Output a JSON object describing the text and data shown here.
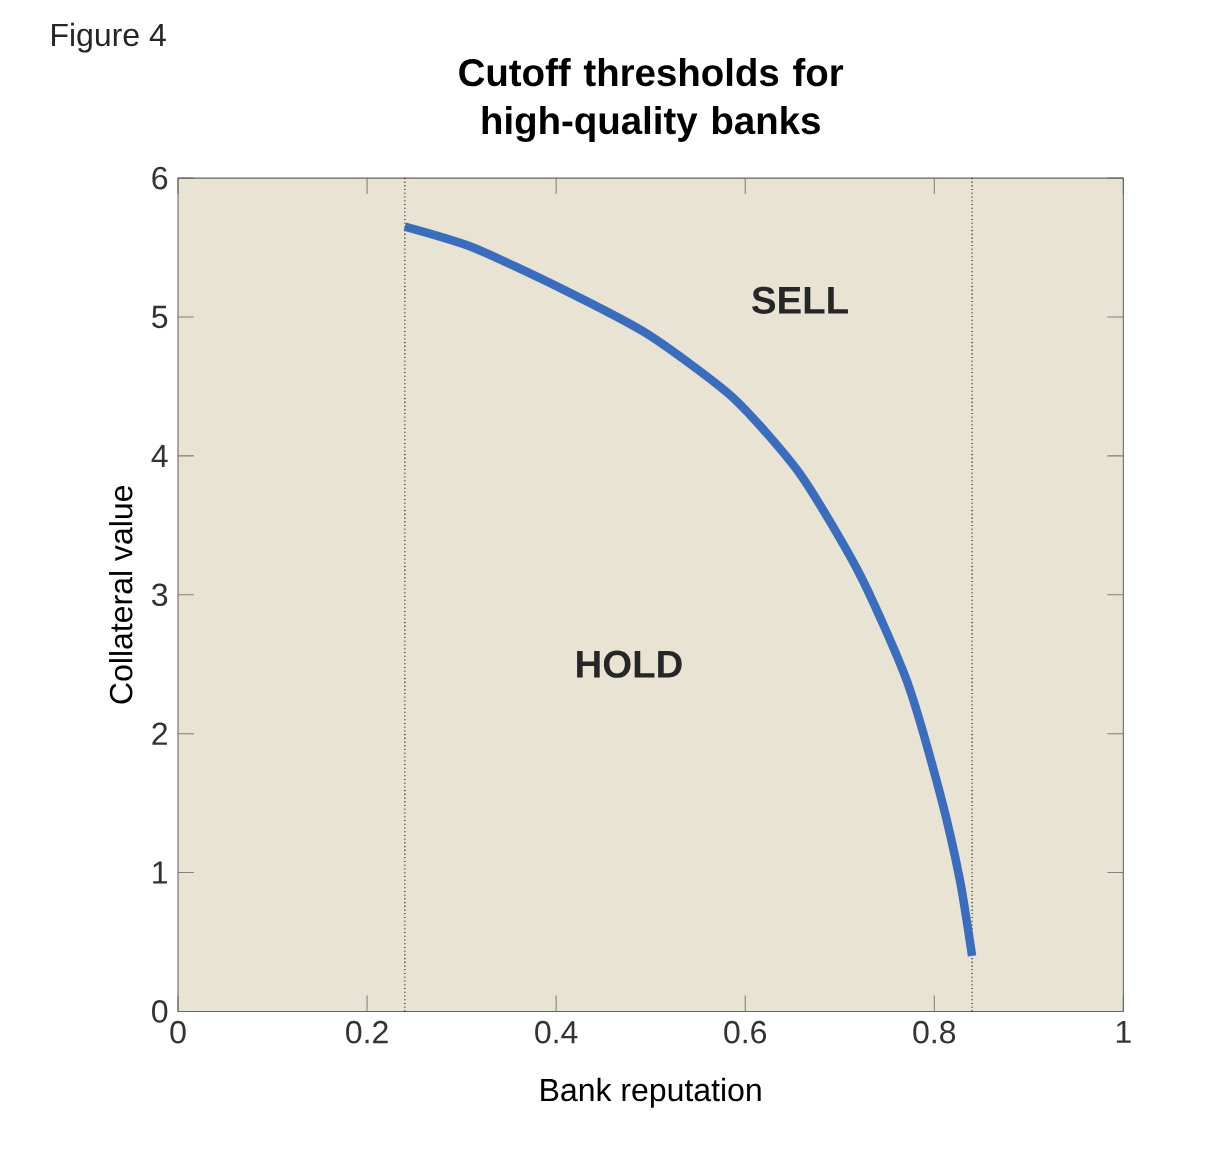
{
  "chart_data": {
    "type": "line",
    "title": "Cutoff thresholds for high-quality banks",
    "xlabel": "Bank reputation",
    "ylabel": "Collateral value",
    "x": [
      0.24,
      0.312,
      0.404,
      0.496,
      0.587,
      0.658,
      0.721,
      0.771,
      0.806,
      0.827,
      0.84
    ],
    "series": [
      {
        "color": "#3a6dbd",
        "values": [
          5.65,
          5.5,
          5.21,
          4.88,
          4.42,
          3.87,
          3.15,
          2.38,
          1.57,
          0.95,
          0.4
        ]
      }
    ],
    "xlim": [
      0,
      1
    ],
    "ylim": [
      0,
      6
    ],
    "xticks": [
      0,
      0.2,
      0.4,
      0.6,
      0.8,
      1
    ],
    "yticks": [
      0,
      1,
      2,
      3,
      4,
      5,
      6
    ],
    "ref_lines": [
      {
        "axis": "x",
        "value": 0.24,
        "line_style": "dotted"
      },
      {
        "axis": "x",
        "value": 0.84,
        "line_style": "dotted"
      }
    ],
    "annotations": [
      "SELL",
      "HOLD",
      "Figure 4"
    ],
    "grid": false
  }
}
